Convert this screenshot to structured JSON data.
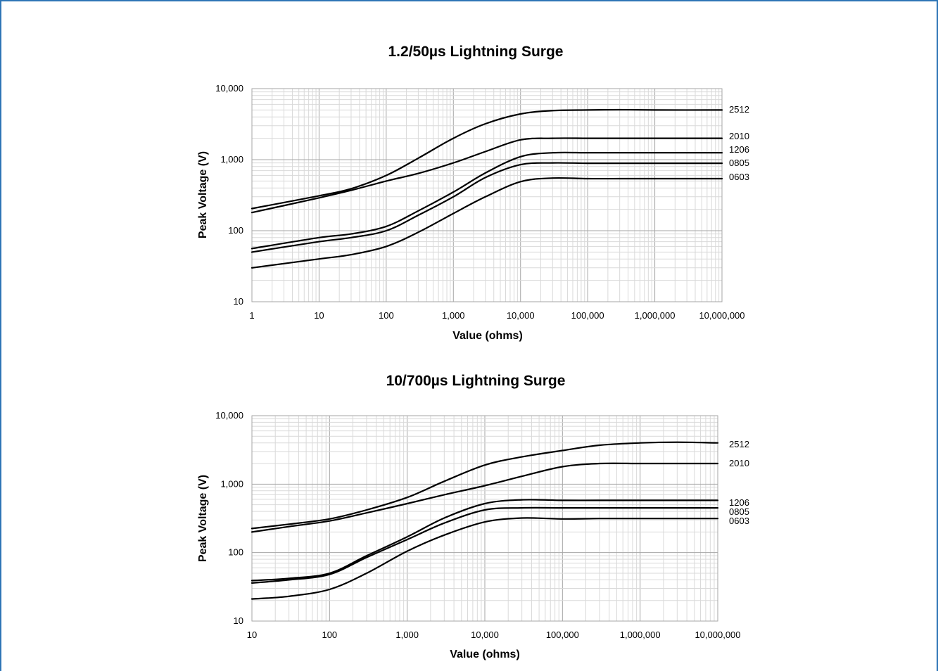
{
  "chart_data": [
    {
      "type": "line",
      "title": "1.2/50µs Lightning Surge",
      "xlabel": "Value (ohms)",
      "ylabel": "Peak Voltage (V)",
      "xscale": "log",
      "yscale": "log",
      "xlim": [
        1,
        10000000
      ],
      "ylim": [
        10,
        10000
      ],
      "grid": true,
      "x_tick_labels": [
        "1",
        "10",
        "100",
        "1,000",
        "10,000",
        "100,000",
        "1,000,000",
        "10,000,000"
      ],
      "y_tick_labels": [
        "10",
        "100",
        "1,000",
        "10,000"
      ],
      "x": [
        1,
        10,
        30,
        100,
        300,
        1000,
        3000,
        10000,
        30000,
        100000,
        300000,
        1000000,
        10000000
      ],
      "series": [
        {
          "name": "2512",
          "values": [
            205,
            310,
            390,
            600,
            1050,
            2000,
            3200,
            4400,
            4900,
            5000,
            5050,
            5000,
            5000
          ]
        },
        {
          "name": "2010",
          "values": [
            180,
            290,
            370,
            500,
            640,
            900,
            1300,
            1900,
            2000,
            2000,
            2000,
            2000,
            2000
          ]
        },
        {
          "name": "1206",
          "values": [
            56,
            80,
            90,
            115,
            190,
            350,
            650,
            1100,
            1250,
            1250,
            1250,
            1250,
            1250
          ]
        },
        {
          "name": "0805",
          "values": [
            50,
            70,
            80,
            100,
            165,
            300,
            560,
            850,
            900,
            890,
            890,
            890,
            890
          ]
        },
        {
          "name": "0603",
          "values": [
            30,
            40,
            46,
            60,
            95,
            175,
            300,
            490,
            550,
            540,
            540,
            540,
            540
          ]
        }
      ]
    },
    {
      "type": "line",
      "title": "10/700µs Lightning Surge",
      "xlabel": "Value (ohms)",
      "ylabel": "Peak Voltage (V)",
      "xscale": "log",
      "yscale": "log",
      "xlim": [
        10,
        10000000
      ],
      "ylim": [
        10,
        10000
      ],
      "grid": true,
      "x_tick_labels": [
        "10",
        "100",
        "1,000",
        "10,000",
        "100,000",
        "1,000,000",
        "10,000,000"
      ],
      "y_tick_labels": [
        "10",
        "100",
        "1,000",
        "10,000"
      ],
      "x": [
        10,
        30,
        100,
        300,
        1000,
        3000,
        10000,
        30000,
        100000,
        300000,
        1000000,
        3000000,
        10000000
      ],
      "series": [
        {
          "name": "2512",
          "values": [
            225,
            260,
            310,
            420,
            640,
            1100,
            1900,
            2500,
            3100,
            3700,
            4000,
            4100,
            4000
          ]
        },
        {
          "name": "2010",
          "values": [
            200,
            240,
            290,
            380,
            520,
            700,
            950,
            1300,
            1800,
            2000,
            2000,
            2000,
            2000
          ]
        },
        {
          "name": "1206",
          "values": [
            39,
            42,
            50,
            90,
            170,
            320,
            520,
            590,
            580,
            580,
            580,
            580,
            580
          ]
        },
        {
          "name": "0805",
          "values": [
            36,
            40,
            48,
            85,
            155,
            270,
            420,
            450,
            450,
            450,
            450,
            450,
            450
          ]
        },
        {
          "name": "0603",
          "values": [
            21,
            23,
            29,
            50,
            105,
            180,
            280,
            320,
            310,
            315,
            315,
            315,
            315
          ]
        }
      ]
    }
  ]
}
